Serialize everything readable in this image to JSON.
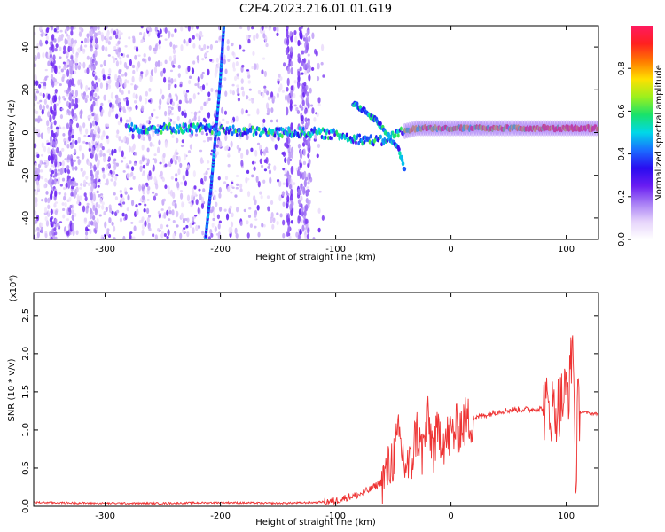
{
  "figure": {
    "title": "C2E4.2023.216.01.01.G19"
  },
  "chart_data": [
    {
      "type": "heatmap",
      "xlabel": "Height of straight line (km)",
      "ylabel": "Frequency (Hz)",
      "xlim": [
        -362,
        128
      ],
      "ylim": [
        -50,
        50
      ],
      "xticks": [
        -300,
        -200,
        -100,
        0,
        100
      ],
      "yticks": [
        -40,
        -20,
        0,
        20,
        40
      ],
      "colorbar": {
        "label": "Normalized spectral amplitude",
        "range": [
          0.0,
          1.0
        ],
        "ticks": [
          0.0,
          0.2,
          0.4,
          0.6,
          0.8
        ],
        "colormap": [
          "#ffffff",
          "#e6d4fb",
          "#a980f5",
          "#6a1df2",
          "#2a0cf0",
          "#1a6cff",
          "#00d8e8",
          "#19e26a",
          "#9bf01e",
          "#ffe000",
          "#ff7a00",
          "#ff2020",
          "#ff1a60"
        ]
      },
      "features": {
        "carrier_line": [
          [
            -280,
            2
          ],
          [
            -220,
            2
          ],
          [
            -200,
            1
          ],
          [
            -150,
            0
          ],
          [
            -120,
            0
          ],
          [
            -100,
            -1
          ],
          [
            -80,
            -3
          ],
          [
            -60,
            -4
          ],
          [
            -45,
            0
          ],
          [
            -30,
            2
          ],
          [
            0,
            2
          ],
          [
            50,
            2
          ],
          [
            100,
            2
          ],
          [
            128,
            2
          ]
        ],
        "diagonal_streak": [
          [
            -213,
            -50
          ],
          [
            -208,
            -25
          ],
          [
            -204,
            0
          ],
          [
            -200,
            25
          ],
          [
            -197,
            50
          ]
        ],
        "upper_branch": [
          [
            -85,
            14
          ],
          [
            -65,
            6
          ],
          [
            -45,
            -8
          ],
          [
            -40,
            -18
          ]
        ]
      }
    },
    {
      "type": "line",
      "xlabel": "Height of straight line (km)",
      "ylabel": "SNR (10 * v/v)",
      "yscale_label": "(x10⁴)",
      "xlim": [
        -362,
        128
      ],
      "ylim": [
        0.0,
        2.8
      ],
      "xticks": [
        -300,
        -200,
        -100,
        0,
        100
      ],
      "yticks": [
        0.0,
        0.5,
        1.0,
        1.5,
        2.0,
        2.5
      ],
      "ytick_labels": [
        "0.0",
        "0.5",
        "1.0",
        "1.5",
        "2.0",
        "2.5"
      ],
      "color": "#ee3333",
      "series": [
        {
          "x": [
            -362,
            -300,
            -250,
            -200,
            -150,
            -120,
            -100,
            -90,
            -80,
            -70,
            -60,
            -55,
            -50,
            -45,
            -40,
            -35,
            -30,
            -25,
            -20,
            -15,
            -10,
            -5,
            0,
            5,
            10,
            20,
            30,
            40,
            50,
            60,
            70,
            80,
            85,
            90,
            95,
            100,
            103,
            106,
            108,
            110,
            115,
            120,
            128
          ],
          "y": [
            0.05,
            0.04,
            0.04,
            0.05,
            0.04,
            0.05,
            0.07,
            0.12,
            0.15,
            0.22,
            0.32,
            0.45,
            0.65,
            0.9,
            0.55,
            0.5,
            1.0,
            0.7,
            1.1,
            0.75,
            1.0,
            0.85,
            0.95,
            1.0,
            1.08,
            1.15,
            1.2,
            1.24,
            1.26,
            1.27,
            1.27,
            1.28,
            1.3,
            1.25,
            1.35,
            1.5,
            1.6,
            2.25,
            0.2,
            1.25,
            1.23,
            1.22,
            1.21
          ]
        }
      ]
    }
  ]
}
